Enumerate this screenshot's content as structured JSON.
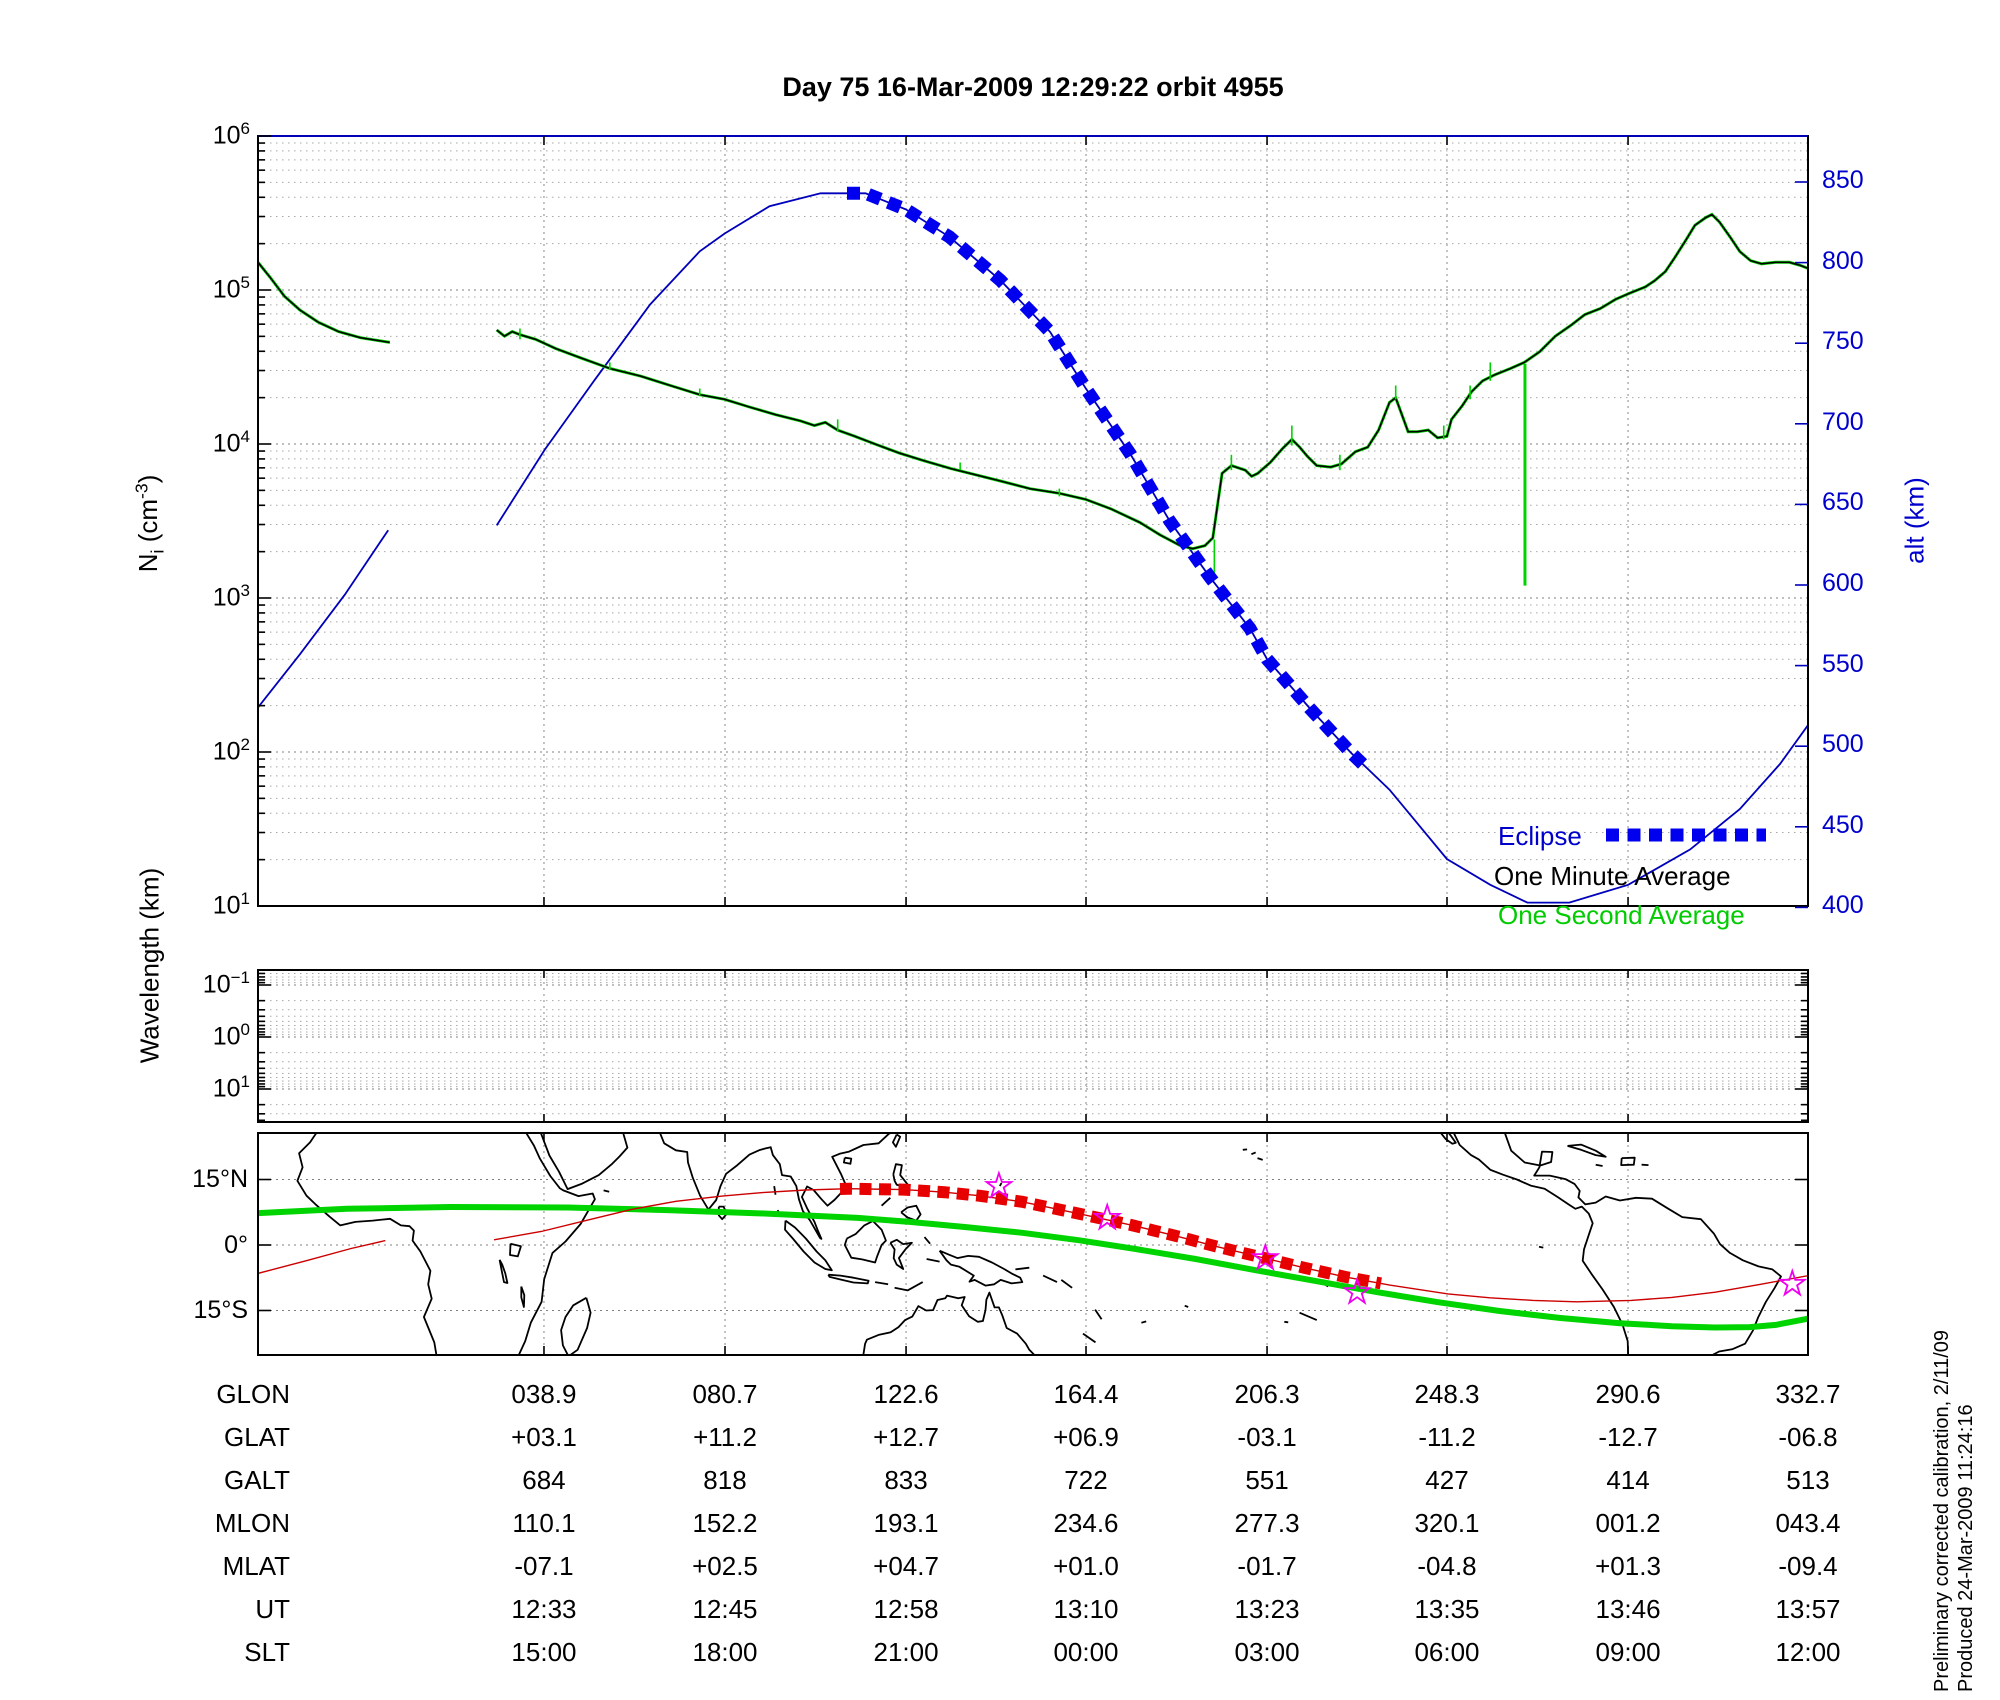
{
  "title": "Day 75  16-Mar-2009 12:29:22   orbit 4955",
  "colors": {
    "one_minute": "#000000",
    "one_second": "#00d400",
    "altitude_line": "#0000bb",
    "eclipse": "#0000ee",
    "map_equator_green": "#00d400",
    "map_track_red": "#cc0000",
    "map_eclipse_red": "#e60000",
    "star_magenta": "#f000f0",
    "grid": "#999999"
  },
  "top_panel": {
    "ylabel_base": "N",
    "ylabel_sub": "i",
    "ylabel_mid": " (cm",
    "ylabel_sup": "-3",
    "ylabel_end": ")",
    "y_tick_exponents": [
      6,
      5,
      4,
      3,
      2,
      1
    ],
    "right_label": "alt (km)",
    "right_ticks": [
      850,
      800,
      750,
      700,
      650,
      600,
      550,
      500,
      450,
      400
    ],
    "legend": {
      "eclipse": "Eclipse",
      "one_minute": "One Minute Average",
      "one_second": "One Second Average"
    }
  },
  "middle_panel": {
    "ylabel": "Wavelength (km)",
    "y_tick_exponents": [
      -1,
      0,
      1
    ]
  },
  "map_panel": {
    "lat_labels": [
      "15°N",
      "0°",
      "15°S"
    ]
  },
  "table": {
    "row_labels": [
      "GLON",
      "GLAT",
      "GALT",
      "MLON",
      "MLAT",
      "UT",
      "SLT"
    ],
    "rows": [
      [
        "038.9",
        "080.7",
        "122.6",
        "164.4",
        "206.3",
        "248.3",
        "290.6",
        "332.7"
      ],
      [
        "+03.1",
        "+11.2",
        "+12.7",
        "+06.9",
        "-03.1",
        "-11.2",
        "-12.7",
        "-06.8"
      ],
      [
        "684",
        "818",
        "833",
        "722",
        "551",
        "427",
        "414",
        "513"
      ],
      [
        "110.1",
        "152.2",
        "193.1",
        "234.6",
        "277.3",
        "320.1",
        "001.2",
        "043.4"
      ],
      [
        "-07.1",
        "+02.5",
        "+04.7",
        "+01.0",
        "-01.7",
        "-04.8",
        "+01.3",
        "-09.4"
      ],
      [
        "12:33",
        "12:45",
        "12:58",
        "13:10",
        "13:23",
        "13:35",
        "13:46",
        "13:57"
      ],
      [
        "15:00",
        "18:00",
        "21:00",
        "00:00",
        "03:00",
        "06:00",
        "09:00",
        "12:00"
      ]
    ]
  },
  "side_note_line1": "Preliminary corrected calibration, 2/11/09",
  "side_note_line2": "Produced 24-Mar-2009 11:24:16",
  "chart_data": {
    "type": "line",
    "x_axis": "time (UT 12:29 - 13:57), ticks aligned with table columns",
    "column_fracs": [
      0.1845,
      0.3013,
      0.4181,
      0.5342,
      0.651,
      0.7671,
      0.8839,
      1.0
    ],
    "density_log10_vs_frac": {
      "name": "Ni one-minute/one-second average (cm^-3, log10)",
      "segment1": [
        [
          0,
          5.18
        ],
        [
          0.008,
          5.08
        ],
        [
          0.017,
          4.96
        ],
        [
          0.027,
          4.87
        ],
        [
          0.039,
          4.79
        ],
        [
          0.052,
          4.73
        ],
        [
          0.066,
          4.69
        ],
        [
          0.085,
          4.66
        ]
      ],
      "segment2": [
        [
          0.154,
          4.74
        ],
        [
          0.159,
          4.7
        ],
        [
          0.164,
          4.73
        ],
        [
          0.169,
          4.71
        ],
        [
          0.179,
          4.68
        ],
        [
          0.192,
          4.62
        ],
        [
          0.208,
          4.56
        ],
        [
          0.227,
          4.49
        ],
        [
          0.247,
          4.44
        ],
        [
          0.266,
          4.38
        ],
        [
          0.285,
          4.32
        ],
        [
          0.301,
          4.29
        ],
        [
          0.317,
          4.24
        ],
        [
          0.334,
          4.19
        ],
        [
          0.35,
          4.15
        ],
        [
          0.359,
          4.12
        ],
        [
          0.366,
          4.14
        ],
        [
          0.374,
          4.09
        ],
        [
          0.385,
          4.05
        ],
        [
          0.398,
          4.0
        ],
        [
          0.414,
          3.94
        ],
        [
          0.43,
          3.89
        ],
        [
          0.447,
          3.84
        ],
        [
          0.463,
          3.8
        ],
        [
          0.479,
          3.76
        ],
        [
          0.498,
          3.71
        ],
        [
          0.517,
          3.68
        ],
        [
          0.534,
          3.64
        ],
        [
          0.55,
          3.58
        ],
        [
          0.569,
          3.49
        ],
        [
          0.582,
          3.41
        ],
        [
          0.595,
          3.34
        ],
        [
          0.603,
          3.32
        ],
        [
          0.611,
          3.34
        ],
        [
          0.616,
          3.39
        ],
        [
          0.622,
          3.81
        ],
        [
          0.628,
          3.86
        ],
        [
          0.637,
          3.83
        ],
        [
          0.641,
          3.79
        ],
        [
          0.645,
          3.81
        ],
        [
          0.653,
          3.88
        ],
        [
          0.661,
          3.97
        ],
        [
          0.667,
          4.03
        ],
        [
          0.672,
          3.98
        ],
        [
          0.677,
          3.92
        ],
        [
          0.683,
          3.86
        ],
        [
          0.692,
          3.85
        ],
        [
          0.699,
          3.87
        ],
        [
          0.708,
          3.95
        ],
        [
          0.716,
          3.98
        ],
        [
          0.723,
          4.09
        ],
        [
          0.73,
          4.27
        ],
        [
          0.734,
          4.3
        ],
        [
          0.738,
          4.19
        ],
        [
          0.742,
          4.08
        ],
        [
          0.748,
          4.08
        ],
        [
          0.755,
          4.09
        ],
        [
          0.761,
          4.04
        ],
        [
          0.767,
          4.05
        ],
        [
          0.77,
          4.16
        ],
        [
          0.777,
          4.25
        ],
        [
          0.783,
          4.34
        ],
        [
          0.79,
          4.41
        ],
        [
          0.798,
          4.45
        ],
        [
          0.808,
          4.49
        ],
        [
          0.817,
          4.53
        ],
        [
          0.827,
          4.6
        ],
        [
          0.837,
          4.7
        ],
        [
          0.847,
          4.77
        ],
        [
          0.856,
          4.84
        ],
        [
          0.866,
          4.88
        ],
        [
          0.876,
          4.94
        ],
        [
          0.885,
          4.98
        ],
        [
          0.895,
          5.02
        ],
        [
          0.901,
          5.06
        ],
        [
          0.908,
          5.12
        ],
        [
          0.914,
          5.21
        ],
        [
          0.921,
          5.32
        ],
        [
          0.927,
          5.42
        ],
        [
          0.934,
          5.47
        ],
        [
          0.938,
          5.49
        ],
        [
          0.943,
          5.44
        ],
        [
          0.95,
          5.34
        ],
        [
          0.956,
          5.25
        ],
        [
          0.963,
          5.19
        ],
        [
          0.97,
          5.17
        ],
        [
          0.979,
          5.18
        ],
        [
          0.988,
          5.18
        ],
        [
          0.995,
          5.16
        ],
        [
          1.0,
          5.14
        ]
      ]
    },
    "one_second_spikes_frac_log10": [
      [
        0.617,
        3.15,
        3.38
      ],
      [
        0.628,
        3.83,
        3.93
      ],
      [
        0.667,
        3.99,
        4.12
      ],
      [
        0.698,
        3.83,
        3.93
      ],
      [
        0.734,
        4.29,
        4.38
      ],
      [
        0.765,
        4.03,
        4.12
      ],
      [
        0.782,
        4.29,
        4.38
      ],
      [
        0.795,
        4.41,
        4.53
      ],
      [
        0.374,
        4.08,
        4.16
      ],
      [
        0.285,
        4.31,
        4.36
      ],
      [
        0.227,
        4.48,
        4.53
      ],
      [
        0.169,
        4.68,
        4.75
      ],
      [
        0.517,
        3.66,
        3.71
      ],
      [
        0.453,
        3.83,
        3.88
      ]
    ],
    "one_second_dropout": {
      "frac": 0.8174,
      "log10_top": 4.52,
      "log10_bottom": 3.08
    },
    "altitude_km_vs_frac": {
      "name": "altitude (km), right axis",
      "segment1": [
        [
          0,
          524
        ],
        [
          0.027,
          557
        ],
        [
          0.056,
          594
        ],
        [
          0.084,
          634
        ]
      ],
      "segment2": [
        [
          0.154,
          637
        ],
        [
          0.185,
          684
        ],
        [
          0.217,
          727
        ],
        [
          0.253,
          774
        ],
        [
          0.285,
          807
        ],
        [
          0.301,
          818
        ],
        [
          0.33,
          835
        ],
        [
          0.363,
          843
        ],
        [
          0.392,
          843
        ],
        [
          0.418,
          833
        ],
        [
          0.446,
          816
        ],
        [
          0.479,
          789
        ],
        [
          0.511,
          757
        ],
        [
          0.534,
          722
        ],
        [
          0.563,
          681
        ],
        [
          0.588,
          640
        ],
        [
          0.614,
          605
        ],
        [
          0.64,
          573
        ],
        [
          0.651,
          554
        ],
        [
          0.679,
          523
        ],
        [
          0.705,
          496
        ],
        [
          0.73,
          473
        ],
        [
          0.767,
          430
        ],
        [
          0.795,
          414
        ],
        [
          0.819,
          403
        ],
        [
          0.846,
          403
        ],
        [
          0.884,
          414
        ],
        [
          0.924,
          436
        ],
        [
          0.956,
          461
        ],
        [
          0.982,
          489
        ],
        [
          1.0,
          513
        ]
      ]
    },
    "eclipse_overlay_frac_range": [
      0.38,
      0.715
    ],
    "map": {
      "lon_left_edge": -26.5,
      "lon_right_edge": 330.8,
      "lat_range": [
        -25.7,
        25.7
      ],
      "ground_track_lonlat": [
        [
          -26.5,
          -6.5
        ],
        [
          -15,
          -3.5
        ],
        [
          -5,
          -0.8
        ],
        [
          2.9,
          1.0
        ],
        [
          28,
          1.2
        ],
        [
          38.9,
          3.1
        ],
        [
          50,
          5.8
        ],
        [
          60,
          8.2
        ],
        [
          70,
          10.0
        ],
        [
          80.7,
          11.2
        ],
        [
          90,
          12.0
        ],
        [
          100,
          12.6
        ],
        [
          110,
          12.9
        ],
        [
          122.6,
          12.7
        ],
        [
          132,
          12.1
        ],
        [
          140,
          11.3
        ],
        [
          150,
          9.9
        ],
        [
          164.4,
          6.9
        ],
        [
          175,
          4.6
        ],
        [
          185,
          2.2
        ],
        [
          195,
          -0.4
        ],
        [
          206.3,
          -3.1
        ],
        [
          215,
          -5.2
        ],
        [
          225,
          -7.4
        ],
        [
          235,
          -9.2
        ],
        [
          248.3,
          -11.2
        ],
        [
          258,
          -12.1
        ],
        [
          268,
          -12.7
        ],
        [
          278,
          -13.0
        ],
        [
          290.6,
          -12.7
        ],
        [
          300,
          -12.0
        ],
        [
          310,
          -10.8
        ],
        [
          320,
          -9.1
        ],
        [
          332.7,
          -6.8
        ]
      ],
      "track_gap_lon": [
        2.9,
        28.0
      ],
      "eclipse_track_lon_range": [
        107.9,
        232.8
      ],
      "magnetic_equator_lonlat": [
        [
          -26.5,
          7.3
        ],
        [
          -6,
          8.3
        ],
        [
          18,
          8.7
        ],
        [
          45,
          8.6
        ],
        [
          68,
          8.0
        ],
        [
          91,
          7.2
        ],
        [
          112,
          6.2
        ],
        [
          124,
          5.3
        ],
        [
          137,
          4.1
        ],
        [
          150,
          2.8
        ],
        [
          163,
          1.1
        ],
        [
          176,
          -0.9
        ],
        [
          190,
          -3.2
        ],
        [
          204,
          -5.8
        ],
        [
          218,
          -8.3
        ],
        [
          232,
          -10.8
        ],
        [
          246,
          -13.1
        ],
        [
          260,
          -15.1
        ],
        [
          274,
          -16.7
        ],
        [
          288,
          -17.9
        ],
        [
          300,
          -18.6
        ],
        [
          310,
          -18.9
        ],
        [
          318,
          -18.8
        ],
        [
          324,
          -18.3
        ],
        [
          330.8,
          -17.0
        ],
        [
          333,
          -16.5
        ]
      ],
      "stars_lonlat": [
        [
          144.6,
          13.5
        ],
        [
          169.6,
          6.2
        ],
        [
          206.1,
          -3.0
        ],
        [
          227.3,
          -10.8
        ],
        [
          327.8,
          -8.9
        ]
      ]
    }
  }
}
